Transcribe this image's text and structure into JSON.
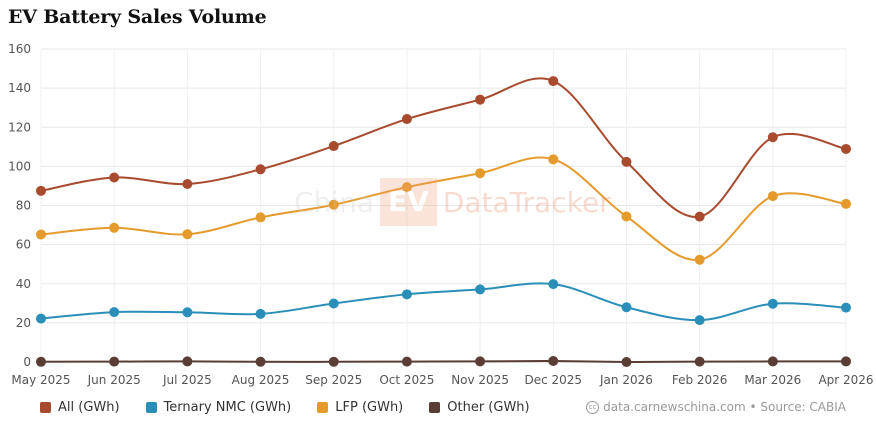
{
  "title": "EV Battery Sales Volume",
  "watermark": {
    "part1": "China",
    "part2": "EV",
    "part3": "DataTracker"
  },
  "source_text": "data.carnewschina.com • Source: CABIA",
  "chart_data": {
    "type": "line",
    "title": "EV Battery Sales Volume",
    "xlabel": "",
    "ylabel": "",
    "ylim": [
      0,
      160
    ],
    "yticks": [
      0,
      20,
      40,
      60,
      80,
      100,
      120,
      140,
      160
    ],
    "grid": true,
    "legend_position": "bottom-left",
    "categories": [
      "May 2025",
      "Jun 2025",
      "Jul 2025",
      "Aug 2025",
      "Sep 2025",
      "Oct 2025",
      "Nov 2025",
      "Dec 2025",
      "Jan 2026",
      "Feb 2026",
      "Mar 2026",
      "Apr 2026"
    ],
    "series": [
      {
        "name": "All (GWh)",
        "color": "#a84a2e",
        "values": [
          87.5,
          94.3,
          91.0,
          98.5,
          110.4,
          124.2,
          134.1,
          143.6,
          102.3,
          74.3,
          114.9,
          108.9
        ]
      },
      {
        "name": "Ternary NMC (GWh)",
        "color": "#2a8fb8",
        "values": [
          22.2,
          25.5,
          25.4,
          24.6,
          29.9,
          34.6,
          37.1,
          39.8,
          28.0,
          21.4,
          29.8,
          27.8
        ]
      },
      {
        "name": "LFP (GWh)",
        "color": "#e59b2c",
        "values": [
          65.2,
          68.6,
          65.3,
          73.9,
          80.4,
          89.4,
          96.5,
          103.6,
          74.4,
          52.3,
          84.8,
          80.8
        ]
      },
      {
        "name": "Other (GWh)",
        "color": "#5a3e36",
        "values": [
          0.1,
          0.2,
          0.3,
          0.1,
          0.1,
          0.2,
          0.3,
          0.5,
          0.0,
          0.2,
          0.3,
          0.3
        ]
      }
    ]
  }
}
